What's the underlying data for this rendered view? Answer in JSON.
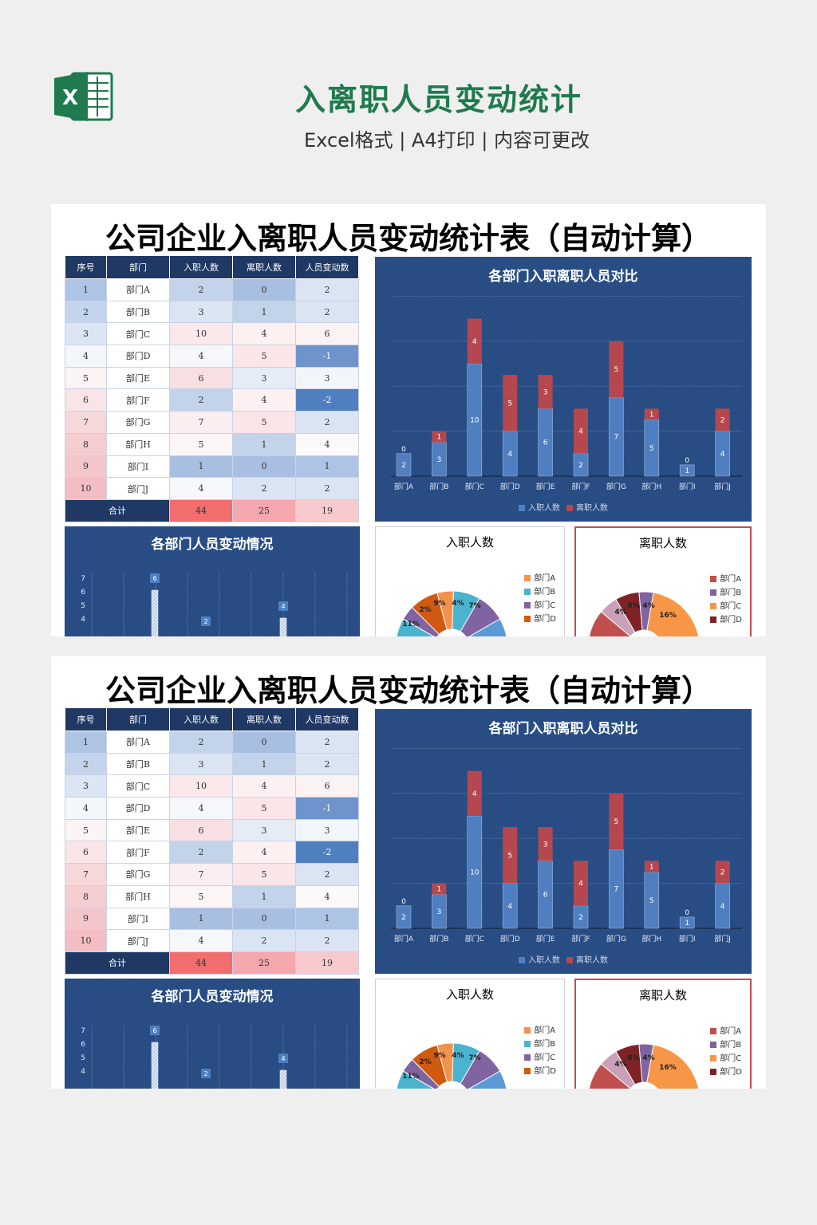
{
  "page": {
    "title": "入离职人员变动统计",
    "subtitle": "Excel格式 | A4打印 | 内容可更改",
    "logo_icon": "excel-icon",
    "logo_letter": "X"
  },
  "sheet": {
    "title": "公司企业入离职人员变动统计表（自动计算）",
    "headers": [
      "序号",
      "部门",
      "入职人数",
      "离职人数",
      "人员变动数"
    ],
    "rows": [
      [
        "1",
        "部门A",
        "2",
        "0",
        "2"
      ],
      [
        "2",
        "部门B",
        "3",
        "1",
        "2"
      ],
      [
        "3",
        "部门C",
        "10",
        "4",
        "6"
      ],
      [
        "4",
        "部门D",
        "4",
        "5",
        "-1"
      ],
      [
        "5",
        "部门E",
        "6",
        "3",
        "3"
      ],
      [
        "6",
        "部门F",
        "2",
        "4",
        "-2"
      ],
      [
        "7",
        "部门G",
        "7",
        "5",
        "2"
      ],
      [
        "8",
        "部门H",
        "5",
        "1",
        "4"
      ],
      [
        "9",
        "部门I",
        "1",
        "0",
        "1"
      ],
      [
        "10",
        "部门J",
        "4",
        "2",
        "2"
      ]
    ],
    "total": {
      "label": "合计",
      "hire": "44",
      "leave": "25",
      "change": "19"
    }
  },
  "chart_data": [
    {
      "type": "bar",
      "stacked": true,
      "title": "各部门入职离职人员对比",
      "categories": [
        "部门A",
        "部门B",
        "部门C",
        "部门D",
        "部门E",
        "部门F",
        "部门G",
        "部门H",
        "部门I",
        "部门J"
      ],
      "series": [
        {
          "name": "入职人数",
          "values": [
            2,
            3,
            10,
            4,
            6,
            2,
            7,
            5,
            1,
            4
          ],
          "color": "#4f7fc0"
        },
        {
          "name": "离职人数",
          "values": [
            0,
            1,
            4,
            5,
            3,
            4,
            5,
            1,
            0,
            2
          ],
          "color": "#b5484f"
        }
      ],
      "legend": "bottom",
      "ylim": [
        0,
        16
      ]
    },
    {
      "type": "bar",
      "title": "各部门人员变动情况",
      "y_ticks": [
        "7",
        "6",
        "5",
        "4"
      ],
      "visible_labels": [
        "6",
        "2",
        "4"
      ]
    },
    {
      "type": "pie",
      "title": "入职人数",
      "legend": [
        "部门A",
        "部门B",
        "部门C",
        "部门D"
      ],
      "visible_percent_labels": [
        "11%",
        "2%",
        "9%",
        "4%",
        "7%"
      ]
    },
    {
      "type": "pie",
      "title": "离职人数",
      "legend": [
        "部门A",
        "部门B",
        "部门C",
        "部门D"
      ],
      "visible_percent_labels": [
        "4%",
        "8%",
        "4%",
        "16%"
      ]
    }
  ],
  "colors": {
    "brand_green": "#1f7a4d",
    "header_navy": "#1f3864",
    "chart_bg": "#254a82",
    "hire_bar": "#4f7fc0",
    "leave_bar": "#b5484f",
    "pie_a": "#f4914a",
    "pie_b": "#4cb3cf",
    "pie_c": "#8064a2",
    "pie_d": "#d05a10",
    "leave_pie_a": "#c0504d",
    "leave_pie_b": "#8064a2",
    "leave_pie_c": "#f79646",
    "leave_pie_d": "#7f2226"
  }
}
